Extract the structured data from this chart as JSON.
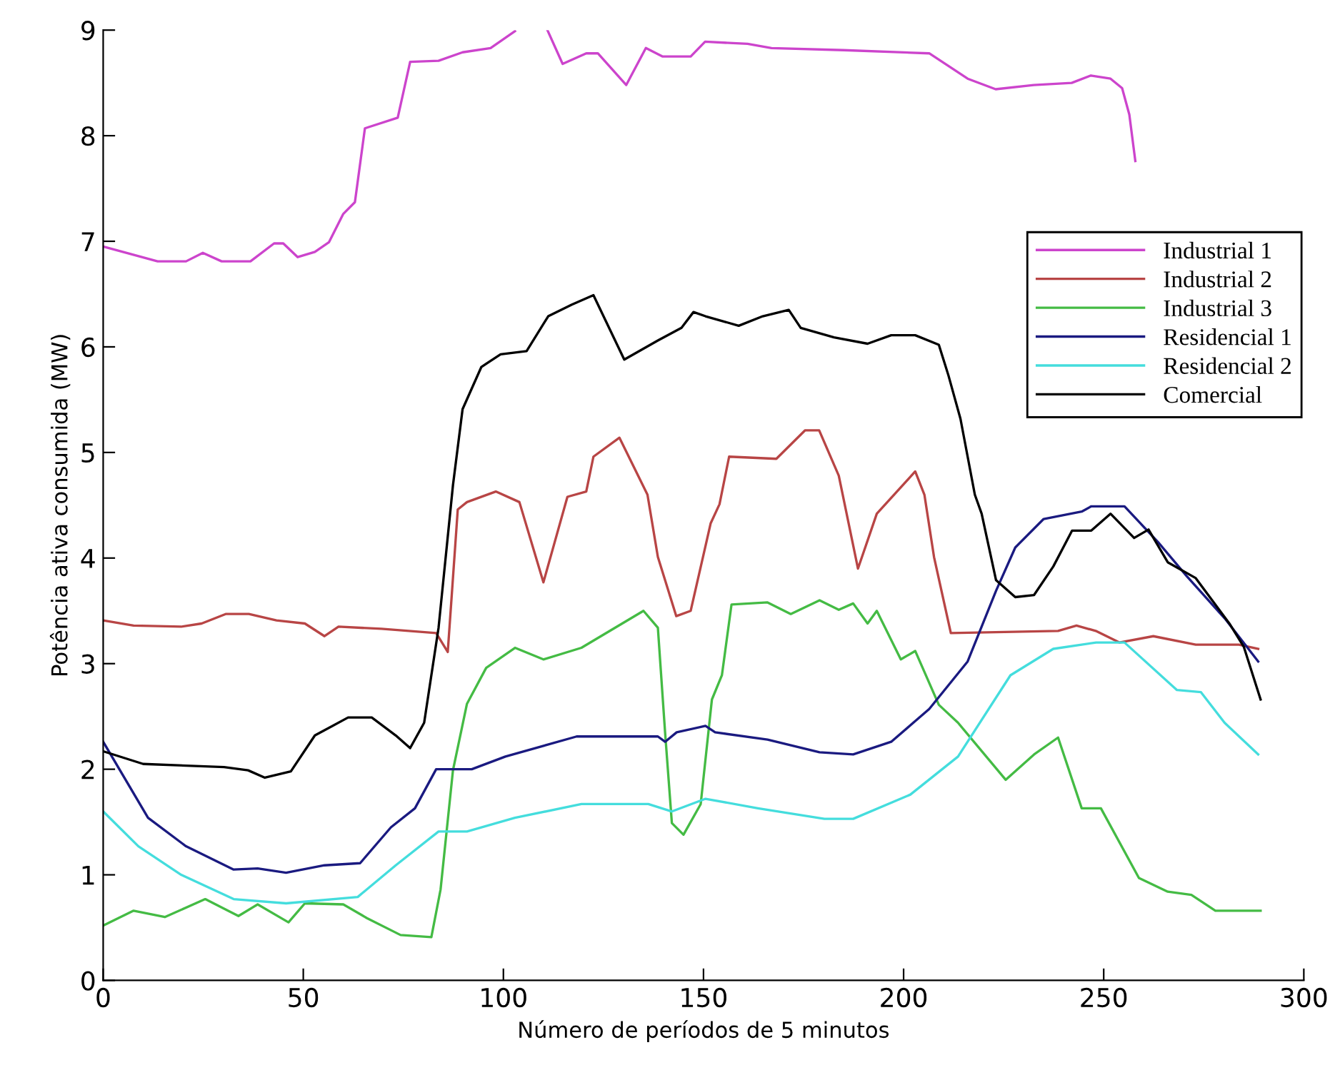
{
  "chart_data": {
    "type": "line",
    "xlabel": "Número de períodos de 5 minutos",
    "ylabel": "Potência ativa consumida (MW)",
    "xlim": [
      0,
      300
    ],
    "ylim": [
      0,
      9
    ],
    "xticks": [
      0,
      50,
      100,
      150,
      200,
      250,
      300
    ],
    "yticks": [
      0,
      1,
      2,
      3,
      4,
      5,
      6,
      7,
      8,
      9
    ],
    "grid": false,
    "legend": "right",
    "marker": "none",
    "line_style": "solid",
    "series": [
      {
        "name": "Industrial 1",
        "color": "#cc44cc",
        "x": [
          0,
          13.6,
          20.7,
          24.9,
          29.6,
          36.8,
          42.7,
          45,
          48.6,
          52.9,
          56.4,
          60,
          62.9,
          65.4,
          73.6,
          76.7,
          83.8,
          89.8,
          96.8,
          102.9,
          107,
          111,
          114.8,
          120.7,
          123.6,
          130.7,
          135.6,
          139.8,
          146.8,
          150.4,
          161,
          167,
          185,
          206.4,
          216,
          223,
          232.5,
          242,
          246.8,
          251.7,
          254.6,
          256.4,
          257.9
        ],
        "values": [
          6.95,
          6.81,
          6.81,
          6.89,
          6.81,
          6.81,
          6.98,
          6.98,
          6.85,
          6.9,
          6.99,
          7.26,
          7.37,
          8.07,
          8.17,
          8.7,
          8.71,
          8.79,
          8.83,
          8.99,
          null,
          9.0,
          8.68,
          8.78,
          8.78,
          8.48,
          8.83,
          8.75,
          8.75,
          8.89,
          8.87,
          8.83,
          8.81,
          8.78,
          8.54,
          8.44,
          8.48,
          8.5,
          8.57,
          8.54,
          8.45,
          8.2,
          7.76
        ]
      },
      {
        "name": "Industrial 2",
        "color": "#b84545",
        "x": [
          0,
          7.6,
          19.5,
          24.6,
          30.6,
          36.4,
          43.3,
          50.4,
          55.3,
          58.8,
          69.5,
          83.2,
          86.1,
          88.6,
          90.9,
          98.1,
          104,
          110,
          116,
          120.7,
          122.5,
          129,
          136,
          138.6,
          143.2,
          146.8,
          151.8,
          154,
          156.4,
          168.2,
          175.4,
          178.9,
          183.8,
          188.6,
          193.3,
          202.9,
          205.2,
          207.6,
          211.8,
          238.6,
          243.2,
          248,
          253.9,
          262.4,
          273,
          283.8,
          288.6
        ],
        "values": [
          3.41,
          3.36,
          3.35,
          3.38,
          3.47,
          3.47,
          3.41,
          3.38,
          3.26,
          3.35,
          3.33,
          3.29,
          3.11,
          4.46,
          4.53,
          4.63,
          4.53,
          3.77,
          4.58,
          4.63,
          4.96,
          5.14,
          4.6,
          4.01,
          3.45,
          3.5,
          4.33,
          4.51,
          4.96,
          4.94,
          5.21,
          5.21,
          4.78,
          3.9,
          4.42,
          4.82,
          4.6,
          4.01,
          3.29,
          3.31,
          3.36,
          3.31,
          3.2,
          3.26,
          3.18,
          3.18,
          3.14
        ]
      },
      {
        "name": "Industrial 3",
        "color": "#44bb44",
        "x": [
          0,
          7.6,
          15.4,
          25.5,
          33.8,
          38.6,
          46.3,
          50.4,
          60,
          65.9,
          74.3,
          82,
          84.3,
          87.4,
          90.9,
          95.7,
          102.9,
          110,
          119.5,
          135,
          138.6,
          140.4,
          142.1,
          145,
          149.3,
          152.1,
          154.6,
          157,
          166,
          171.8,
          179,
          183.8,
          187.4,
          191,
          193.3,
          199.3,
          202.9,
          208.8,
          213.6,
          225.5,
          232.6,
          238.6,
          244.5,
          249.3,
          258.8,
          266,
          271.9,
          277.9,
          289.2
        ],
        "values": [
          0.52,
          0.66,
          0.6,
          0.77,
          0.61,
          0.72,
          0.55,
          0.73,
          0.72,
          0.59,
          0.43,
          0.41,
          0.86,
          1.99,
          2.62,
          2.96,
          3.15,
          3.04,
          3.15,
          3.5,
          3.34,
          2.35,
          1.49,
          1.38,
          1.67,
          2.66,
          2.89,
          3.56,
          3.58,
          3.47,
          3.6,
          3.51,
          3.57,
          3.38,
          3.5,
          3.04,
          3.12,
          2.61,
          2.44,
          1.9,
          2.14,
          2.3,
          1.63,
          1.63,
          0.97,
          0.84,
          0.81,
          0.66,
          0.66
        ]
      },
      {
        "name": "Residencial 1",
        "color": "#1a1a80",
        "x": [
          0,
          11.2,
          20.7,
          32.6,
          38.6,
          45.7,
          55.3,
          64.2,
          71.9,
          77.9,
          83.2,
          92.1,
          100.5,
          118.3,
          138.6,
          140.4,
          143.3,
          150.5,
          152.9,
          166,
          179,
          187.4,
          196.9,
          206.4,
          216,
          223.1,
          227.9,
          235,
          244.5,
          246.9,
          255.2,
          263.6,
          270.7,
          280.2,
          288.6
        ],
        "values": [
          2.26,
          1.54,
          1.27,
          1.05,
          1.06,
          1.02,
          1.09,
          1.11,
          1.45,
          1.63,
          2.0,
          2.0,
          2.12,
          2.31,
          2.31,
          2.26,
          2.35,
          2.41,
          2.35,
          2.28,
          2.16,
          2.14,
          2.26,
          2.57,
          3.02,
          3.69,
          4.1,
          4.37,
          4.44,
          4.49,
          4.49,
          4.15,
          3.83,
          3.43,
          3.02
        ]
      },
      {
        "name": "Residencial 2",
        "color": "#44dddd",
        "x": [
          0,
          8.8,
          19.5,
          32.6,
          45.7,
          63.6,
          73.1,
          83.8,
          90.9,
          102.9,
          119.5,
          136.2,
          142.1,
          150.5,
          163.6,
          180.2,
          187.4,
          201.7,
          213.6,
          226.7,
          237.4,
          248.1,
          255.2,
          268.3,
          274.3,
          280.2,
          288.6
        ],
        "values": [
          1.6,
          1.27,
          1.0,
          0.77,
          0.73,
          0.79,
          1.09,
          1.41,
          1.41,
          1.54,
          1.67,
          1.67,
          1.6,
          1.72,
          1.63,
          1.53,
          1.53,
          1.76,
          2.12,
          2.89,
          3.14,
          3.2,
          3.2,
          2.75,
          2.73,
          2.44,
          2.14
        ]
      },
      {
        "name": "Comercial",
        "color": "#000000",
        "x": [
          0,
          10,
          30.2,
          36.2,
          40.4,
          46.9,
          52.9,
          61.2,
          67.1,
          73.1,
          76.7,
          80.2,
          83.8,
          87.4,
          89.8,
          94.5,
          99.3,
          105.8,
          111.2,
          117.1,
          122.5,
          130.2,
          138.6,
          144.5,
          147.5,
          150.5,
          158.8,
          164.8,
          171.3,
          174.3,
          182.6,
          191,
          196.9,
          202.9,
          208.8,
          211.2,
          214.2,
          217.8,
          219.5,
          223.1,
          227.9,
          232.6,
          237.4,
          242.1,
          246.9,
          251.7,
          257.6,
          261.2,
          266,
          273,
          281.4,
          285,
          289.2
        ],
        "values": [
          2.17,
          2.05,
          2.02,
          1.99,
          1.92,
          1.98,
          2.32,
          2.49,
          2.49,
          2.32,
          2.2,
          2.44,
          3.34,
          4.69,
          5.41,
          5.81,
          5.93,
          5.96,
          6.29,
          6.4,
          6.49,
          5.88,
          6.06,
          6.18,
          6.33,
          6.29,
          6.2,
          6.29,
          6.35,
          6.18,
          6.09,
          6.03,
          6.11,
          6.11,
          6.02,
          5.73,
          5.32,
          4.6,
          4.42,
          3.79,
          3.63,
          3.65,
          3.92,
          4.26,
          4.26,
          4.42,
          4.19,
          4.27,
          3.96,
          3.81,
          3.38,
          3.16,
          2.66
        ]
      }
    ]
  }
}
